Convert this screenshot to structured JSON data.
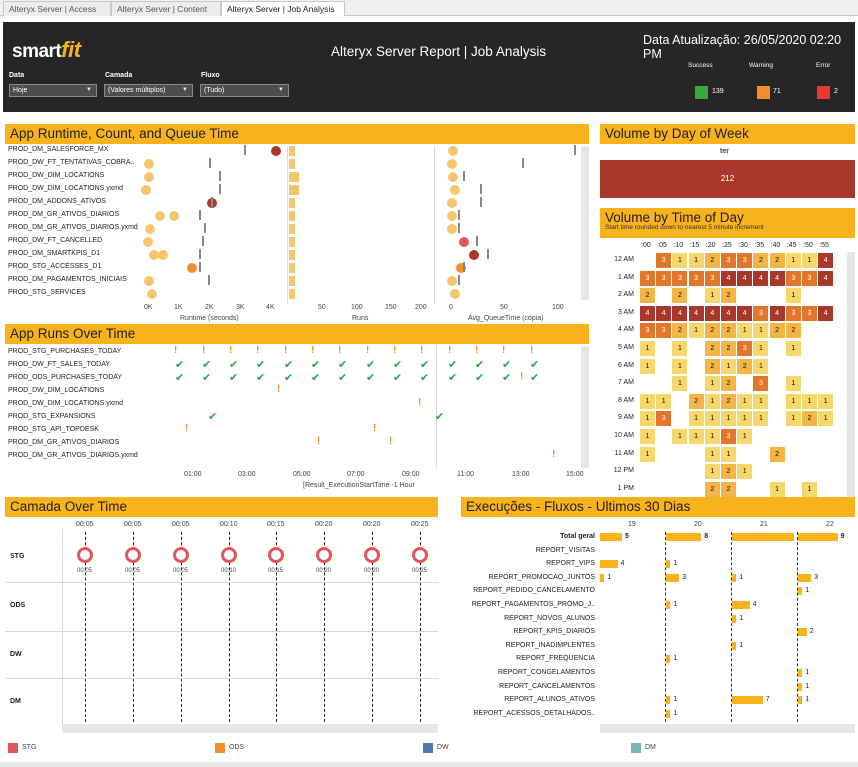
{
  "tabs": [
    "Alteryx Server | Access",
    "Alteryx Server | Content",
    "Alteryx Server | Job Analysis"
  ],
  "header": {
    "logo_a": "smart",
    "logo_b": "fit",
    "title": "Alteryx Server Report | Job Analysis",
    "update": "Data Atualização: 26/05/2020 02:20 PM",
    "filters": [
      {
        "label": "Data",
        "value": "Hoje"
      },
      {
        "label": "Camada",
        "value": "(Valores múltiplos)"
      },
      {
        "label": "Fluxo",
        "value": "(Tudo)"
      }
    ],
    "kpis": [
      {
        "label": "Success",
        "value": "139",
        "color": "#3aa83a"
      },
      {
        "label": "Warning",
        "value": "71",
        "color": "#f28e2b"
      },
      {
        "label": "Error",
        "value": "2",
        "color": "#e53935"
      }
    ]
  },
  "runtime": {
    "title": "App Runtime, Count, and Queue Time",
    "rows": [
      "PROD_DM_SALESFORCE_MX",
      "PROD_DW_FT_TENTATIVAS_COBRA..",
      "PROD_DW_DIM_LOCATIONS",
      "PROD_DW_DIM_LOCATIONS.yxmd",
      "PROD_DM_ADDONS_ATIVOS",
      "PROD_DM_GR_ATIVOS_DIARIOS",
      "PROD_DM_GR_ATIVOS_DIARIOS.yxmd",
      "PROD_DW_FT_CANCELLED",
      "PROD_DM_SMARTKPIS_D1",
      "PROD_STG_ACCESSES_D1",
      "PROD_DM_PAGAMENTOS_INICIAIS",
      "PROD_STG_SERVICES"
    ],
    "rt_ticks": [
      "0K",
      "1K",
      "2K",
      "3K",
      "4K"
    ],
    "runs_ticks": [
      "50",
      "100",
      "150",
      "200"
    ],
    "q_ticks": [
      "0",
      "50",
      "100"
    ],
    "rt_label": "Runtime (seconds)",
    "runs_label": "Runs",
    "q_label": "Avg_QueueTime (cópia)"
  },
  "dow": {
    "title": "Volume by Day of Week",
    "day": "ter",
    "value": "212"
  },
  "tod": {
    "title": "Volume by Time of Day",
    "subtitle": "Start time rounded down to nearest 5 minute increment",
    "cols": [
      ":00",
      ":05",
      ":10",
      ":15",
      ":20",
      ":25",
      ":30",
      ":35",
      ":40",
      ":45",
      ":50",
      ":55"
    ],
    "rows": [
      "12 AM",
      "1 AM",
      "2 AM",
      "3 AM",
      "4 AM",
      "5 AM",
      "6 AM",
      "7 AM",
      "8 AM",
      "9 AM",
      "10 AM",
      "11 AM",
      "12 PM",
      "1 PM"
    ],
    "cells": [
      [
        "",
        "3",
        "1",
        "1",
        "2",
        "3",
        "3",
        "2",
        "2",
        "1",
        "1",
        "4"
      ],
      [
        "3",
        "3",
        "3",
        "3",
        "3",
        "4",
        "4",
        "4",
        "4",
        "3",
        "3",
        "4"
      ],
      [
        "2",
        "",
        "2",
        "",
        "1",
        "2",
        "",
        "",
        "",
        "1",
        "",
        ""
      ],
      [
        "4",
        "4",
        "4",
        "4",
        "4",
        "4",
        "4",
        "3",
        "4",
        "3",
        "3",
        "4"
      ],
      [
        "3",
        "3",
        "2",
        "1",
        "2",
        "2",
        "1",
        "1",
        "2",
        "2",
        "",
        ""
      ],
      [
        "1",
        "",
        "1",
        "",
        "2",
        "2",
        "3",
        "1",
        "",
        "1",
        "",
        ""
      ],
      [
        "1",
        "",
        "1",
        "",
        "2",
        "1",
        "2",
        "1",
        "",
        "",
        "",
        ""
      ],
      [
        "",
        "",
        "1",
        "",
        "1",
        "2",
        "",
        "3",
        "",
        "1",
        "",
        ""
      ],
      [
        "1",
        "1",
        "",
        "2",
        "1",
        "2",
        "1",
        "1",
        "",
        "1",
        "1",
        "1"
      ],
      [
        "1",
        "3",
        "",
        "1",
        "1",
        "1",
        "1",
        "1",
        "",
        "1",
        "2",
        "1"
      ],
      [
        "1",
        "",
        "1",
        "1",
        "1",
        "3",
        "1",
        "",
        "",
        "",
        "",
        ""
      ],
      [
        "1",
        "",
        "",
        "",
        "1",
        "1",
        "",
        "",
        "2",
        "",
        "",
        ""
      ],
      [
        "",
        "",
        "",
        "",
        "1",
        "2",
        "1",
        "",
        "",
        "",
        "",
        ""
      ],
      [
        "",
        "",
        "",
        "",
        "2",
        "2",
        "",
        "",
        "1",
        "",
        "1",
        ""
      ]
    ]
  },
  "runs": {
    "title": "App Runs Over Time",
    "rows": [
      "PROD_STG_PURCHASES_TODAY",
      "PROD_DW_FT_SALES_TODAY",
      "PROD_ODS_PURCHASES_TODAY",
      "PROD_DW_DIM_LOCATIONS",
      "PROD_DW_DIM_LOCATIONS.yxmd",
      "PROD_STG_EXPANSIONS",
      "PROD_STG_API_TOPDESK",
      "PROD_DM_GR_ATIVOS_DIARIOS",
      "PROD_DM_GR_ATIVOS_DIARIOS.yxmd"
    ],
    "ticks": [
      "01:00",
      "03:00",
      "05:00",
      "07:00",
      "09:00",
      "11:00",
      "13:00",
      "15:00"
    ],
    "axis_label": "[Result_ExecutionStartTime -1 Hour"
  },
  "camada": {
    "title": "Camada Over Time",
    "cols": [
      "00:05",
      "00:05",
      "00:05",
      "00:10",
      "00:15",
      "00:20",
      "00:20",
      "00:25"
    ],
    "rows": [
      "STG",
      "ODS",
      "DW",
      "DM"
    ],
    "legend": [
      {
        "label": "STG",
        "color": "#e15759"
      },
      {
        "label": "ODS",
        "color": "#f28e2b"
      },
      {
        "label": "DW",
        "color": "#4e79a7"
      },
      {
        "label": "DM",
        "color": "#76b7b2"
      }
    ]
  },
  "exec": {
    "title": "Execuções - Fluxos - Ultimos 30 Dias",
    "days": [
      "19",
      "20",
      "21",
      "22"
    ],
    "rows": [
      "Total geral",
      "REPORT_VISITAS",
      "REPORT_VIPS",
      "REPORT_PROMOCAO_JUNTOS",
      "REPORT_PEDIDO_CANCELAMENTO",
      "REPORT_PAGAMENTOS_PROMO_J..",
      "REPORT_NOVOS_ALUNOS",
      "REPORT_KPIS_DIARIOS",
      "REPORT_INADIMPLENTES",
      "REPORT_FREQUENCIA",
      "REPORT_CONGELAMENTOS",
      "REPORT_CANCELAMENTOS",
      "REPORT_ALUNOS_ATIVOS",
      "REPORT_ACESSOS_DETALHADOS.."
    ],
    "values": [
      [
        5,
        8,
        14,
        9
      ],
      [
        null,
        null,
        null,
        null
      ],
      [
        4,
        1,
        null,
        null
      ],
      [
        1,
        3,
        1,
        3
      ],
      [
        null,
        null,
        null,
        1
      ],
      [
        null,
        1,
        4,
        null
      ],
      [
        null,
        null,
        1,
        null
      ],
      [
        null,
        null,
        null,
        2
      ],
      [
        null,
        null,
        1,
        null
      ],
      [
        null,
        1,
        null,
        null
      ],
      [
        null,
        null,
        null,
        1
      ],
      [
        null,
        null,
        null,
        1
      ],
      [
        null,
        1,
        7,
        1
      ],
      [
        null,
        1,
        null,
        null
      ]
    ]
  }
}
